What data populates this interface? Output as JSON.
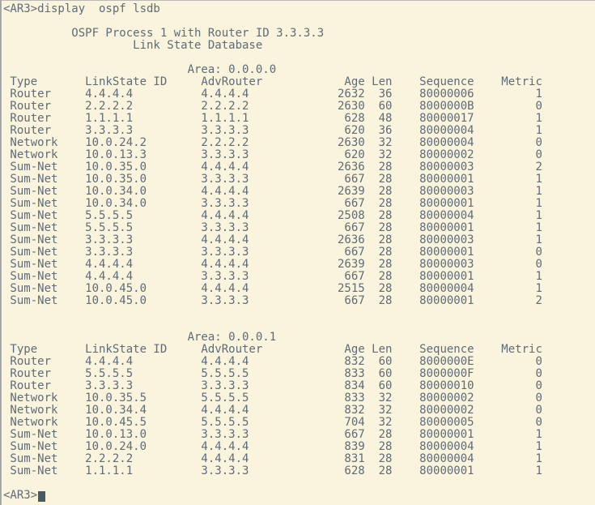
{
  "colors": {
    "background": "#FAF3DE",
    "foreground": "#5E6C77",
    "cursor": "#4A5A63"
  },
  "terminal": {
    "command_line": "<AR3>display  ospf lsdb",
    "process_title": "OSPF Process 1 with Router ID 3.3.3.3",
    "database_title": "Link State Database",
    "columns": [
      "Type",
      "LinkState ID",
      "AdvRouter",
      "Age",
      "Len",
      "Sequence",
      "Metric"
    ],
    "areas": [
      {
        "name": "Area: 0.0.0.0",
        "rows": [
          [
            "Router",
            "4.4.4.4",
            "4.4.4.4",
            "2632",
            "36",
            "80000006",
            "1"
          ],
          [
            "Router",
            "2.2.2.2",
            "2.2.2.2",
            "2630",
            "60",
            "8000000B",
            "0"
          ],
          [
            "Router",
            "1.1.1.1",
            "1.1.1.1",
            "628",
            "48",
            "80000017",
            "1"
          ],
          [
            "Router",
            "3.3.3.3",
            "3.3.3.3",
            "620",
            "36",
            "80000004",
            "1"
          ],
          [
            "Network",
            "10.0.24.2",
            "2.2.2.2",
            "2630",
            "32",
            "80000004",
            "0"
          ],
          [
            "Network",
            "10.0.13.3",
            "3.3.3.3",
            "620",
            "32",
            "80000002",
            "0"
          ],
          [
            "Sum-Net",
            "10.0.35.0",
            "4.4.4.4",
            "2636",
            "28",
            "80000003",
            "2"
          ],
          [
            "Sum-Net",
            "10.0.35.0",
            "3.3.3.3",
            "667",
            "28",
            "80000001",
            "1"
          ],
          [
            "Sum-Net",
            "10.0.34.0",
            "4.4.4.4",
            "2639",
            "28",
            "80000003",
            "1"
          ],
          [
            "Sum-Net",
            "10.0.34.0",
            "3.3.3.3",
            "667",
            "28",
            "80000001",
            "1"
          ],
          [
            "Sum-Net",
            "5.5.5.5",
            "4.4.4.4",
            "2508",
            "28",
            "80000004",
            "1"
          ],
          [
            "Sum-Net",
            "5.5.5.5",
            "3.3.3.3",
            "667",
            "28",
            "80000001",
            "1"
          ],
          [
            "Sum-Net",
            "3.3.3.3",
            "4.4.4.4",
            "2636",
            "28",
            "80000003",
            "1"
          ],
          [
            "Sum-Net",
            "3.3.3.3",
            "3.3.3.3",
            "667",
            "28",
            "80000001",
            "0"
          ],
          [
            "Sum-Net",
            "4.4.4.4",
            "4.4.4.4",
            "2639",
            "28",
            "80000003",
            "0"
          ],
          [
            "Sum-Net",
            "4.4.4.4",
            "3.3.3.3",
            "667",
            "28",
            "80000001",
            "1"
          ],
          [
            "Sum-Net",
            "10.0.45.0",
            "4.4.4.4",
            "2515",
            "28",
            "80000004",
            "1"
          ],
          [
            "Sum-Net",
            "10.0.45.0",
            "3.3.3.3",
            "667",
            "28",
            "80000001",
            "2"
          ]
        ]
      },
      {
        "name": "Area: 0.0.0.1",
        "rows": [
          [
            "Router",
            "4.4.4.4",
            "4.4.4.4",
            "832",
            "60",
            "8000000E",
            "0"
          ],
          [
            "Router",
            "5.5.5.5",
            "5.5.5.5",
            "833",
            "60",
            "8000000F",
            "0"
          ],
          [
            "Router",
            "3.3.3.3",
            "3.3.3.3",
            "834",
            "60",
            "80000010",
            "0"
          ],
          [
            "Network",
            "10.0.35.5",
            "5.5.5.5",
            "833",
            "32",
            "80000002",
            "0"
          ],
          [
            "Network",
            "10.0.34.4",
            "4.4.4.4",
            "832",
            "32",
            "80000002",
            "0"
          ],
          [
            "Network",
            "10.0.45.5",
            "5.5.5.5",
            "704",
            "32",
            "80000005",
            "0"
          ],
          [
            "Sum-Net",
            "10.0.13.0",
            "3.3.3.3",
            "667",
            "28",
            "80000001",
            "1"
          ],
          [
            "Sum-Net",
            "10.0.24.0",
            "4.4.4.4",
            "839",
            "28",
            "80000004",
            "1"
          ],
          [
            "Sum-Net",
            "2.2.2.2",
            "4.4.4.4",
            "831",
            "28",
            "80000004",
            "1"
          ],
          [
            "Sum-Net",
            "1.1.1.1",
            "3.3.3.3",
            "628",
            "28",
            "80000001",
            "1"
          ]
        ]
      }
    ],
    "prompt": "<AR3>"
  }
}
